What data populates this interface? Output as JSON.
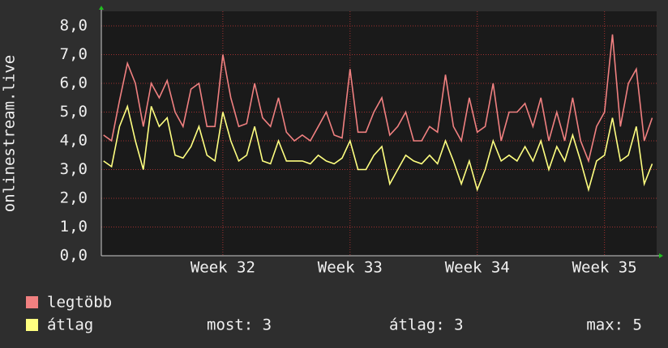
{
  "chart_data": {
    "type": "line",
    "ylabel": "onlinestream.live",
    "xlim": [
      31.045,
      35.41
    ],
    "ylim": [
      0,
      8
    ],
    "xticks": [
      {
        "value": 32,
        "label": "Week 32"
      },
      {
        "value": 33,
        "label": "Week 33"
      },
      {
        "value": 34,
        "label": "Week 34"
      },
      {
        "value": 35,
        "label": "Week 35"
      }
    ],
    "yticks": [
      {
        "value": 0,
        "label": "0,0"
      },
      {
        "value": 1,
        "label": "1,0"
      },
      {
        "value": 2,
        "label": "2,0"
      },
      {
        "value": 3,
        "label": "3,0"
      },
      {
        "value": 4,
        "label": "4,0"
      },
      {
        "value": 5,
        "label": "5,0"
      },
      {
        "value": 6,
        "label": "6,0"
      },
      {
        "value": 7,
        "label": "7,0"
      },
      {
        "value": 8,
        "label": "8,0"
      }
    ],
    "grid": true,
    "x": [
      31.0625,
      31.125,
      31.1875,
      31.25,
      31.3125,
      31.375,
      31.4375,
      31.5,
      31.5625,
      31.625,
      31.6875,
      31.75,
      31.8125,
      31.875,
      31.9375,
      32,
      32.0625,
      32.125,
      32.1875,
      32.25,
      32.3125,
      32.375,
      32.4375,
      32.5,
      32.5625,
      32.625,
      32.6875,
      32.75,
      32.8125,
      32.875,
      32.9375,
      33,
      33.0625,
      33.125,
      33.1875,
      33.25,
      33.3125,
      33.375,
      33.4375,
      33.5,
      33.5625,
      33.625,
      33.6875,
      33.75,
      33.8125,
      33.875,
      33.9375,
      34,
      34.0625,
      34.125,
      34.1875,
      34.25,
      34.3125,
      34.375,
      34.4375,
      34.5,
      34.5625,
      34.625,
      34.6875,
      34.75,
      34.8125,
      34.875,
      34.9375,
      35,
      35.0625,
      35.125,
      35.1875,
      35.25,
      35.3125,
      35.375
    ],
    "series": [
      {
        "name": "legtöbb",
        "color": "#f08080",
        "values": [
          4.2,
          4.0,
          5.4,
          6.7,
          6.0,
          4.5,
          6.0,
          5.5,
          6.1,
          5.0,
          4.5,
          5.8,
          6.0,
          4.5,
          4.5,
          7.0,
          5.5,
          4.5,
          4.6,
          6.0,
          4.8,
          4.5,
          5.5,
          4.3,
          4.0,
          4.2,
          4.0,
          4.5,
          5.0,
          4.2,
          4.1,
          6.5,
          4.3,
          4.3,
          5.0,
          5.5,
          4.2,
          4.5,
          5.0,
          4.0,
          4.0,
          4.5,
          4.3,
          6.3,
          4.5,
          4.0,
          5.5,
          4.3,
          4.5,
          6.0,
          4.0,
          5.0,
          5.0,
          5.3,
          4.5,
          5.5,
          4.0,
          5.0,
          4.0,
          5.5,
          4.0,
          3.3,
          4.5,
          5.0,
          7.7,
          4.5,
          6.0,
          6.5,
          4.0,
          4.8
        ]
      },
      {
        "name": "átlag",
        "color": "#ffff80",
        "values": [
          3.3,
          3.1,
          4.5,
          5.2,
          4.0,
          3.0,
          5.2,
          4.5,
          4.8,
          3.5,
          3.4,
          3.8,
          4.5,
          3.5,
          3.3,
          5.0,
          4.0,
          3.3,
          3.5,
          4.5,
          3.3,
          3.2,
          4.0,
          3.3,
          3.3,
          3.3,
          3.2,
          3.5,
          3.3,
          3.2,
          3.4,
          4.0,
          3.0,
          3.0,
          3.5,
          3.8,
          2.5,
          3.0,
          3.5,
          3.3,
          3.2,
          3.5,
          3.2,
          4.0,
          3.3,
          2.5,
          3.3,
          2.3,
          3.0,
          4.0,
          3.3,
          3.5,
          3.3,
          3.8,
          3.3,
          4.0,
          3.0,
          3.8,
          3.3,
          4.2,
          3.3,
          2.3,
          3.3,
          3.5,
          4.8,
          3.3,
          3.5,
          4.5,
          2.5,
          3.2
        ]
      }
    ],
    "stats": [
      "most: 3",
      "átlag: 3",
      "max: 5"
    ]
  }
}
